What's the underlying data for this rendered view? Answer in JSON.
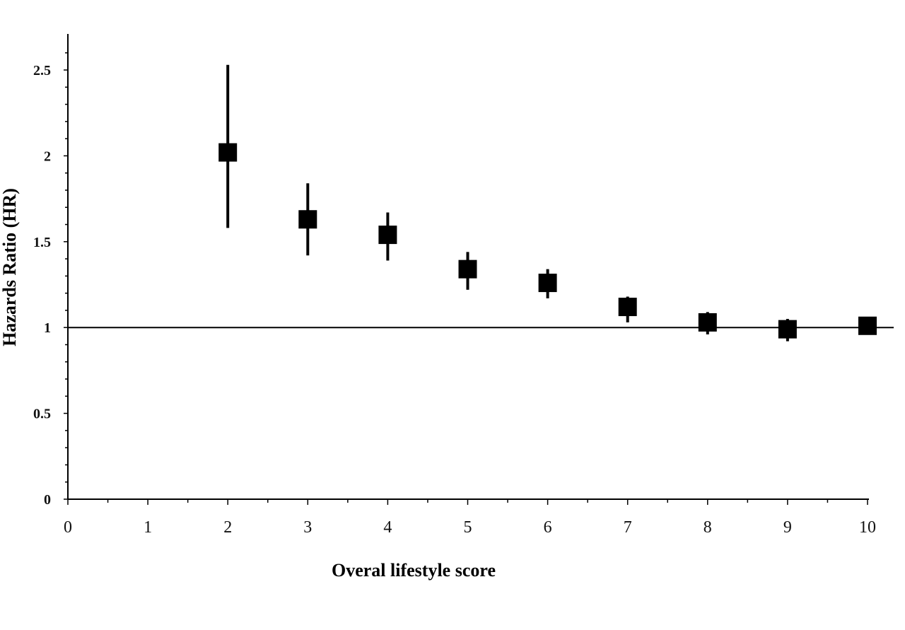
{
  "chart_data": {
    "type": "scatter",
    "xlabel": "Overal lifestyle score",
    "ylabel": "Hazards Ratio (HR)",
    "xlim": [
      0,
      10
    ],
    "ylim": [
      0,
      2.7
    ],
    "xticks": [
      0,
      1,
      2,
      3,
      4,
      5,
      6,
      7,
      8,
      9,
      10
    ],
    "yticks": [
      0,
      0.5,
      1,
      1.5,
      2,
      2.5
    ],
    "xtick_labels": [
      "0",
      "1",
      "2",
      "3",
      "4",
      "5",
      "6",
      "7",
      "8",
      "9",
      "10"
    ],
    "ytick_labels": [
      "0",
      "0.5",
      "1",
      "1.5",
      "2",
      "2.5"
    ],
    "reference_line_y": 1,
    "grid": false,
    "marker_color": "#000000",
    "points": [
      {
        "x": 2,
        "y": 2.02,
        "lower": 1.58,
        "upper": 2.53
      },
      {
        "x": 3,
        "y": 1.63,
        "lower": 1.42,
        "upper": 1.84
      },
      {
        "x": 4,
        "y": 1.54,
        "lower": 1.39,
        "upper": 1.67
      },
      {
        "x": 5,
        "y": 1.34,
        "lower": 1.22,
        "upper": 1.44
      },
      {
        "x": 6,
        "y": 1.26,
        "lower": 1.17,
        "upper": 1.34
      },
      {
        "x": 7,
        "y": 1.12,
        "lower": 1.03,
        "upper": 1.18
      },
      {
        "x": 8,
        "y": 1.03,
        "lower": 0.96,
        "upper": 1.09
      },
      {
        "x": 9,
        "y": 0.99,
        "lower": 0.92,
        "upper": 1.05
      },
      {
        "x": 10,
        "y": 1.01,
        "lower": 1.01,
        "upper": 1.01
      }
    ]
  }
}
